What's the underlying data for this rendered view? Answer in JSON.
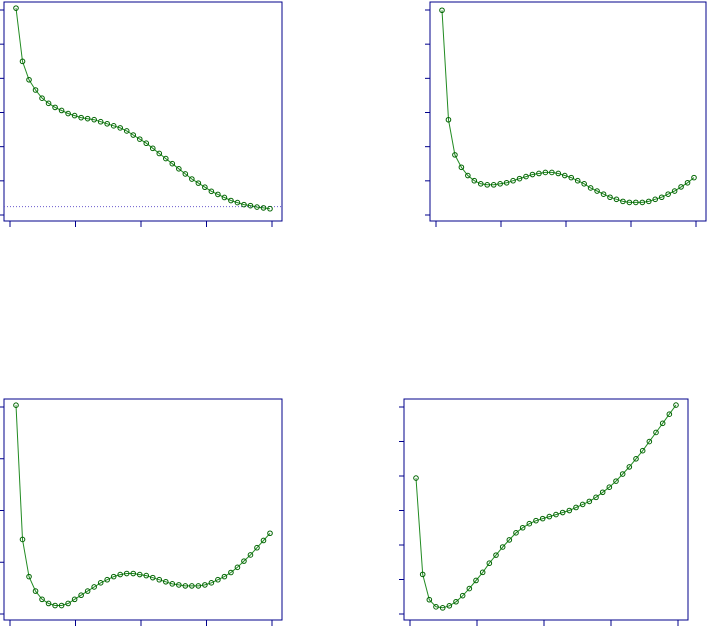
{
  "colors": {
    "frame": "#00008b",
    "series_line": "#228b22",
    "series_point": "#006400",
    "reference_line": "#6a5acd",
    "background": "#ffffff"
  },
  "chart_data": [
    {
      "type": "line",
      "title": "",
      "xlabel": "",
      "ylabel": "",
      "tick_labels": "none",
      "grid": false,
      "legend": "none",
      "x_ticks": 5,
      "y_ticks": 7,
      "reference_line_y": 0.03,
      "x": [
        0,
        1,
        2,
        3,
        4,
        5,
        6,
        7,
        8,
        9,
        10,
        11,
        12,
        13,
        14,
        15,
        16,
        17,
        18,
        19,
        20,
        21,
        22,
        23,
        24,
        25,
        26,
        27,
        28,
        29,
        30,
        31,
        32,
        33,
        34,
        35,
        36,
        37,
        38,
        39
      ],
      "values": [
        1.0,
        0.74,
        0.65,
        0.6,
        0.56,
        0.535,
        0.515,
        0.5,
        0.485,
        0.475,
        0.465,
        0.46,
        0.455,
        0.445,
        0.435,
        0.425,
        0.415,
        0.4,
        0.38,
        0.36,
        0.34,
        0.315,
        0.29,
        0.265,
        0.24,
        0.215,
        0.19,
        0.165,
        0.145,
        0.125,
        0.105,
        0.09,
        0.075,
        0.06,
        0.05,
        0.04,
        0.035,
        0.028,
        0.024,
        0.02
      ],
      "ylim": [
        -0.04,
        1.03
      ]
    },
    {
      "type": "line",
      "title": "",
      "xlabel": "",
      "ylabel": "",
      "tick_labels": "none",
      "grid": false,
      "legend": "none",
      "x_ticks": 5,
      "y_ticks": 7,
      "x": [
        0,
        1,
        2,
        3,
        4,
        5,
        6,
        7,
        8,
        9,
        10,
        11,
        12,
        13,
        14,
        15,
        16,
        17,
        18,
        19,
        20,
        21,
        22,
        23,
        24,
        25,
        26,
        27,
        28,
        29,
        30,
        31,
        32,
        33,
        34,
        35,
        36,
        37,
        38,
        39
      ],
      "values": [
        1.0,
        0.47,
        0.3,
        0.24,
        0.2,
        0.175,
        0.16,
        0.155,
        0.155,
        0.16,
        0.165,
        0.175,
        0.185,
        0.195,
        0.205,
        0.21,
        0.215,
        0.215,
        0.21,
        0.2,
        0.19,
        0.175,
        0.16,
        0.14,
        0.125,
        0.11,
        0.095,
        0.085,
        0.075,
        0.07,
        0.07,
        0.07,
        0.075,
        0.085,
        0.095,
        0.11,
        0.125,
        0.145,
        0.165,
        0.19
      ],
      "ylim": [
        -0.02,
        1.04
      ]
    },
    {
      "type": "line",
      "title": "",
      "xlabel": "",
      "ylabel": "",
      "tick_labels": "none",
      "grid": false,
      "legend": "none",
      "x_ticks": 5,
      "y_ticks": 5,
      "x": [
        0,
        1,
        2,
        3,
        4,
        5,
        6,
        7,
        8,
        9,
        10,
        11,
        12,
        13,
        14,
        15,
        16,
        17,
        18,
        19,
        20,
        21,
        22,
        23,
        24,
        25,
        26,
        27,
        28,
        29,
        30,
        31,
        32,
        33,
        34,
        35,
        36,
        37,
        38,
        39
      ],
      "values": [
        1.0,
        0.35,
        0.17,
        0.1,
        0.06,
        0.04,
        0.03,
        0.03,
        0.04,
        0.06,
        0.08,
        0.1,
        0.12,
        0.14,
        0.155,
        0.17,
        0.18,
        0.185,
        0.185,
        0.18,
        0.175,
        0.165,
        0.155,
        0.145,
        0.135,
        0.13,
        0.125,
        0.125,
        0.125,
        0.13,
        0.14,
        0.155,
        0.17,
        0.19,
        0.215,
        0.245,
        0.275,
        0.31,
        0.345,
        0.38
      ],
      "ylim": [
        -0.04,
        1.03
      ]
    },
    {
      "type": "line",
      "title": "",
      "xlabel": "",
      "ylabel": "",
      "tick_labels": "none",
      "grid": false,
      "legend": "none",
      "x_ticks": 5,
      "y_ticks": 7,
      "x": [
        0,
        1,
        2,
        3,
        4,
        5,
        6,
        7,
        8,
        9,
        10,
        11,
        12,
        13,
        14,
        15,
        16,
        17,
        18,
        19,
        20,
        21,
        22,
        23,
        24,
        25,
        26,
        27,
        28,
        29,
        30,
        31,
        32,
        33,
        34,
        35,
        36,
        37,
        38,
        39
      ],
      "values": [
        0.68,
        0.205,
        0.08,
        0.045,
        0.04,
        0.05,
        0.07,
        0.1,
        0.135,
        0.175,
        0.215,
        0.26,
        0.3,
        0.34,
        0.375,
        0.41,
        0.435,
        0.455,
        0.47,
        0.48,
        0.49,
        0.5,
        0.51,
        0.52,
        0.535,
        0.55,
        0.565,
        0.585,
        0.61,
        0.635,
        0.665,
        0.7,
        0.735,
        0.775,
        0.815,
        0.86,
        0.905,
        0.95,
        0.995,
        1.04
      ],
      "ylim": [
        -0.02,
        1.07
      ]
    }
  ]
}
